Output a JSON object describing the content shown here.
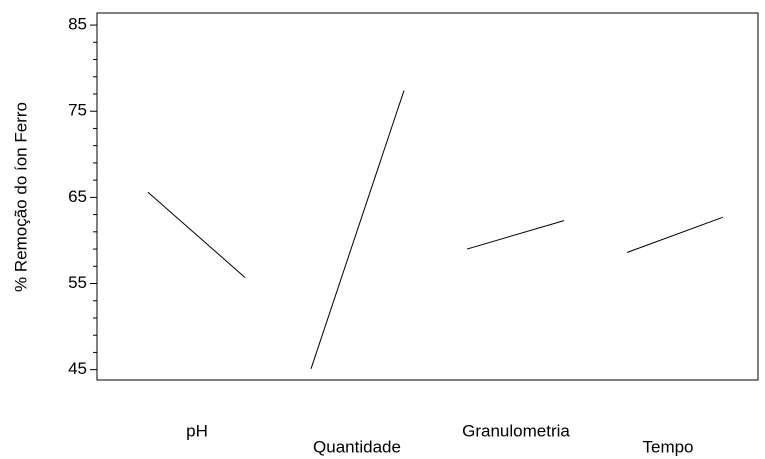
{
  "chart_data": {
    "type": "line",
    "y_label": "% Remoção do íon Ferro",
    "categories": [
      "pH",
      "Quantidade",
      "Granulometria",
      "Tempo"
    ],
    "values": [
      [
        65.6,
        55.7
      ],
      [
        45.1,
        77.4
      ],
      [
        59.0,
        62.3
      ],
      [
        58.6,
        62.7
      ]
    ],
    "color": "#000000",
    "ylim": [
      43.8,
      86.4
    ],
    "yticks": [
      45,
      55,
      65,
      75,
      85
    ]
  }
}
